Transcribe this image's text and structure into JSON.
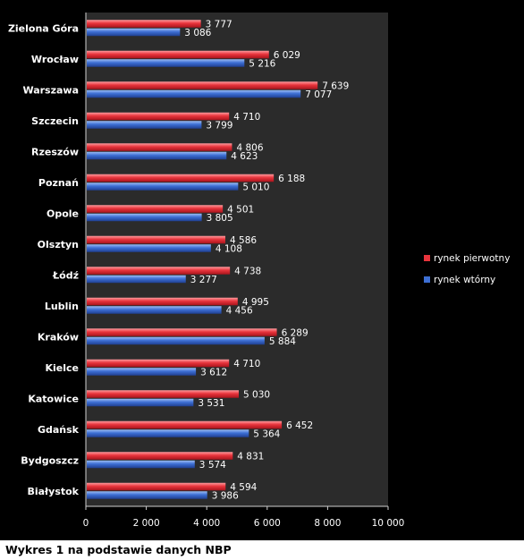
{
  "caption": "Wykres 1 na podstawie danych NBP",
  "chart_data": {
    "type": "bar",
    "orientation": "horizontal",
    "categories": [
      "Zielona Góra",
      "Wrocław",
      "Warszawa",
      "Szczecin",
      "Rzeszów",
      "Poznań",
      "Opole",
      "Olsztyn",
      "Łódź",
      "Lublin",
      "Kraków",
      "Kielce",
      "Katowice",
      "Gdańsk",
      "Bydgoszcz",
      "Białystok"
    ],
    "series": [
      {
        "name": "rynek pierwotny",
        "color": "#e8343c",
        "values": [
          3777,
          6029,
          7639,
          4710,
          4806,
          6188,
          4501,
          4586,
          4738,
          4995,
          6289,
          4710,
          5030,
          6452,
          4831,
          4594
        ],
        "labels": [
          "3 777",
          "6 029",
          "7 639",
          "4 710",
          "4 806",
          "6 188",
          "4 501",
          "4 586",
          "4 738",
          "4 995",
          "6 289",
          "4 710",
          "5 030",
          "6 452",
          "4 831",
          "4 594"
        ]
      },
      {
        "name": "rynek wtórny",
        "color": "#3d6fd4",
        "values": [
          3086,
          5216,
          7077,
          3799,
          4623,
          5010,
          3805,
          4108,
          3277,
          4456,
          5884,
          3612,
          3531,
          5364,
          3574,
          3986
        ],
        "labels": [
          "3 086",
          "5 216",
          "7 077",
          "3 799",
          "4 623",
          "5 010",
          "3 805",
          "4 108",
          "3 277",
          "4 456",
          "5 884",
          "3 612",
          "3 531",
          "5 364",
          "3 574",
          "3 986"
        ]
      }
    ],
    "xlim": [
      0,
      10000
    ],
    "x_ticks": [
      0,
      2000,
      4000,
      6000,
      8000,
      10000
    ],
    "x_tick_labels": [
      "0",
      "2 000",
      "4 000",
      "6 000",
      "8 000",
      "10 000"
    ],
    "legend_position": "right",
    "background": "#2b2b2b",
    "grid": false
  }
}
